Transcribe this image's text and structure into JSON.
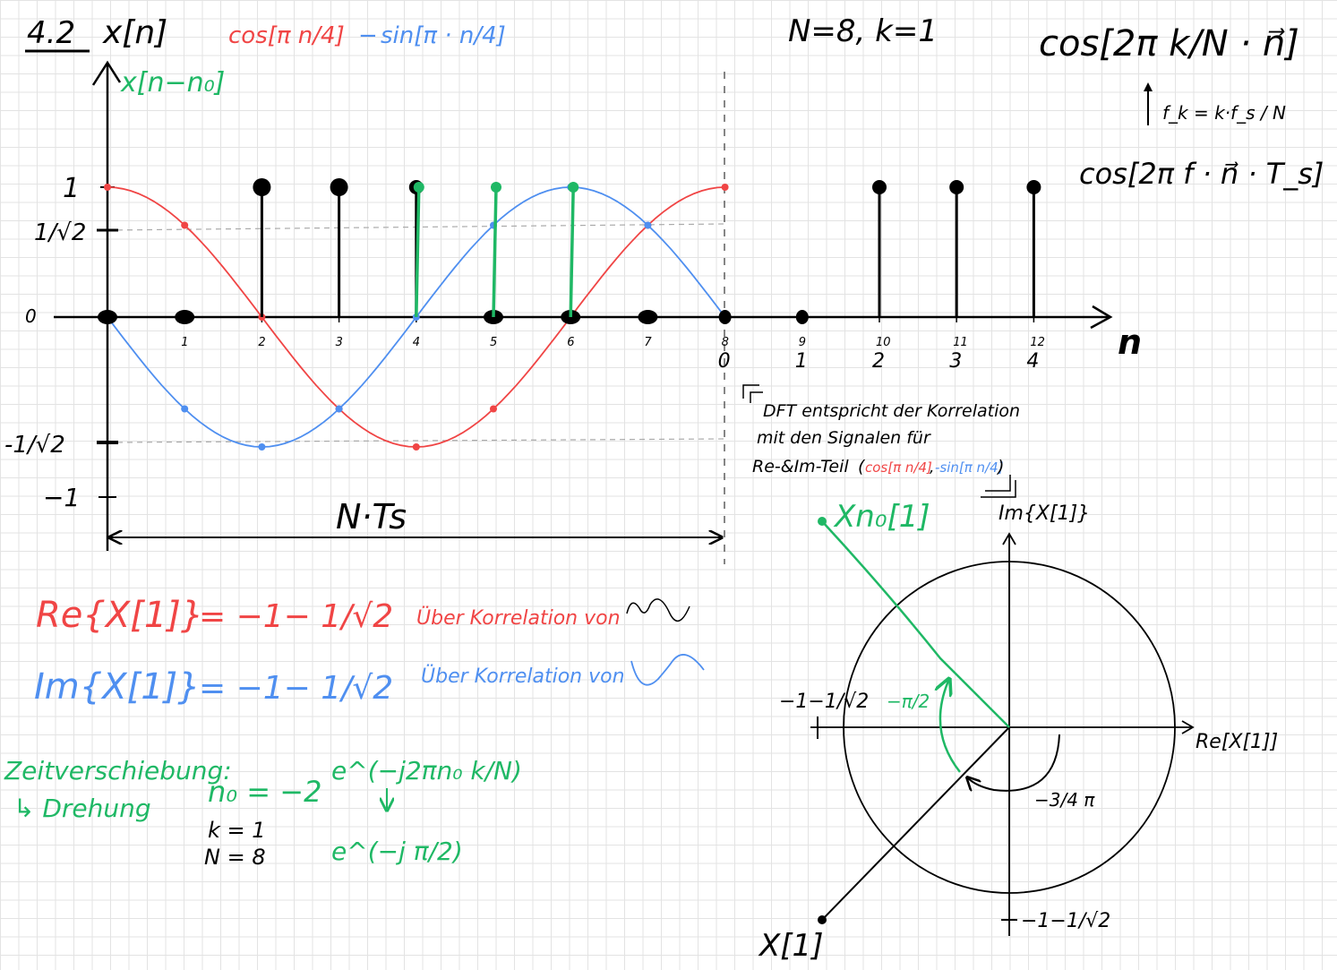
{
  "header": {
    "section": "4.2",
    "signal": "x[n]",
    "cos_term": "cos[π n/4]",
    "minus": "−",
    "sin_term": "sin[π · n/4]",
    "params": "N=8, k=1"
  },
  "formula": {
    "main": "cos[2π k/N · n⃗]",
    "fk": "f_k = k·f_s / N",
    "second": "cos[2π f · n⃗ · T_s]"
  },
  "plot": {
    "y_label": "x[n−n₀]",
    "x_label": "n",
    "origin_label": "0",
    "y_ticks": [
      "1",
      "1/√2",
      "-1/√2",
      "−1"
    ],
    "n_ticks": [
      "1",
      "2",
      "3",
      "4",
      "5",
      "6",
      "7",
      "8",
      "9",
      "10",
      "11",
      "12"
    ],
    "period_ticks": [
      "0",
      "1",
      "2",
      "3",
      "4"
    ],
    "period_label": "N·Ts",
    "colors": {
      "cos": "#f04545",
      "sin": "#4f8ff0",
      "shift": "#1fb865",
      "stem": "#000000"
    }
  },
  "chart_data": {
    "type": "scatter",
    "x": [
      0,
      1,
      2,
      3,
      4,
      5,
      6,
      7,
      8
    ],
    "series": [
      {
        "name": "cos[π n/4]",
        "values": [
          1,
          0.707,
          0,
          -0.707,
          -1,
          -0.707,
          0,
          0.707,
          1
        ]
      },
      {
        "name": "sin[π · n/4]",
        "values": [
          0,
          -0.707,
          -1,
          -0.707,
          0,
          0.707,
          1,
          0.707,
          0
        ]
      }
    ],
    "stems": {
      "n": [
        0,
        1,
        2,
        3,
        4,
        5,
        6,
        7,
        8,
        9,
        10,
        11,
        12
      ],
      "values": [
        0,
        0,
        1,
        1,
        1,
        0,
        0,
        0,
        0,
        0,
        1,
        1,
        1
      ]
    },
    "shifted_stems": {
      "n": [
        4,
        5,
        6
      ],
      "values": [
        1,
        1,
        1
      ]
    },
    "ylim": [
      -1,
      1
    ],
    "xlim": [
      0,
      12
    ]
  },
  "note": {
    "line1": "DFT entspricht der Korrelation",
    "line2": "mit den Signalen für",
    "line3": "Re-&Im-Teil",
    "open_paren": "(",
    "cos_part": "cos[π n/4]",
    "comma": ",",
    "sin_part": "-sin[π n/4]",
    "close_paren": ")"
  },
  "results": {
    "re_lhs": "Re{X[1]}",
    "re_rhs": "= −1− 1/√2",
    "im_lhs": "Im{X[1]}",
    "im_rhs": "= −1− 1/√2",
    "re_note": "Über Korrelation von",
    "im_note": "Über Korrelation von"
  },
  "shift": {
    "title": "Zeitverschiebung:",
    "sub": "↳ Drehung",
    "n0": "n₀ = −2",
    "k": "k = 1",
    "N": "N = 8",
    "exp1": "e^(−j2πn₀ k/N)",
    "exp2": "e^(−j π/2)"
  },
  "complex": {
    "im_label": "Im{X[1]}",
    "re_label": "Re[X[1]]",
    "xn0_label": "Xn₀[1]",
    "x1_label": "X[1]",
    "left_tick": "−1−1/√2",
    "bottom_tick": "−1−1/√2",
    "angle1": "−π/2",
    "angle2": "−3/4 π"
  }
}
